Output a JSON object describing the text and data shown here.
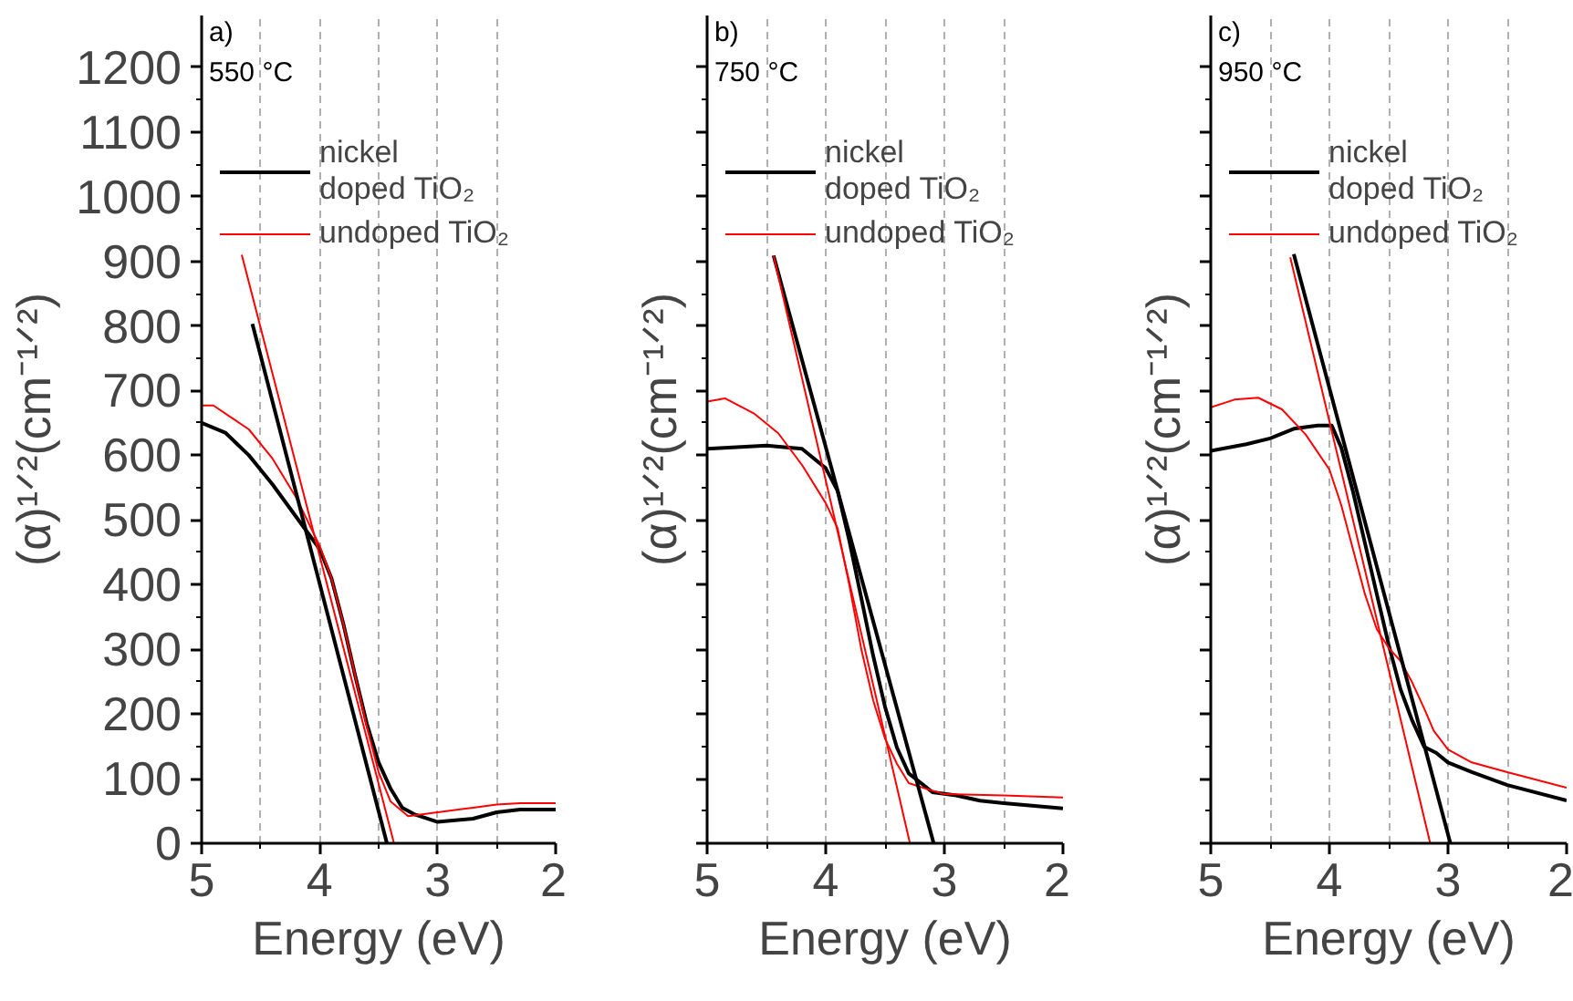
{
  "chart_data": [
    {
      "type": "line",
      "annotations": [
        "a)",
        "550 °C"
      ],
      "xlabel": "Energy (eV)",
      "ylabel": "(α)¹ᐟ²(cm⁻¹ᐟ²)",
      "xlim": [
        5,
        2
      ],
      "ylim": [
        0,
        1280
      ],
      "xticks": [
        5,
        4,
        3,
        2
      ],
      "yticks": [
        0,
        100,
        200,
        300,
        400,
        500,
        600,
        700,
        800,
        900,
        1000,
        1100,
        1200
      ],
      "grid": "x",
      "legend": "top left",
      "series": [
        {
          "name": "nickel\ndoped TiO₂",
          "color": "#000000",
          "x": [
            5,
            4.8,
            4.6,
            4.4,
            4.2,
            4.0,
            3.9,
            3.8,
            3.7,
            3.6,
            3.5,
            3.4,
            3.3,
            3.2,
            3.0,
            2.7,
            2.5,
            2.3,
            2.0
          ],
          "values": [
            650,
            635,
            600,
            555,
            505,
            455,
            410,
            340,
            260,
            185,
            125,
            85,
            55,
            45,
            33,
            38,
            48,
            52,
            52
          ]
        },
        {
          "name": "undoped TiO₂",
          "color": "#ff0000",
          "x": [
            5,
            4.9,
            4.6,
            4.4,
            4.2,
            4.0,
            3.9,
            3.8,
            3.7,
            3.6,
            3.5,
            3.4,
            3.25,
            3.0,
            2.7,
            2.5,
            2.3,
            2.0
          ],
          "values": [
            677,
            677,
            640,
            595,
            535,
            460,
            410,
            340,
            260,
            180,
            110,
            65,
            42,
            48,
            55,
            60,
            62,
            62
          ]
        },
        {
          "color": "#000000",
          "x": [
            4.57,
            3.43
          ],
          "values": [
            803,
            0
          ]
        },
        {
          "color": "#ff0000",
          "x": [
            4.66,
            3.37
          ],
          "values": [
            910,
            0
          ]
        }
      ]
    },
    {
      "type": "line",
      "annotations": [
        "b)",
        "750 °C"
      ],
      "xlabel": "Energy (eV)",
      "ylabel": "(α)¹ᐟ²(cm⁻¹ᐟ²)",
      "xlim": [
        5,
        2
      ],
      "ylim": [
        0,
        1280
      ],
      "xticks": [
        5,
        4,
        3,
        2
      ],
      "yticks": [
        0,
        100,
        200,
        300,
        400,
        500,
        600,
        700,
        800,
        900,
        1000,
        1100,
        1200
      ],
      "tick_labels": "x",
      "grid": "x",
      "legend": "top left",
      "series": [
        {
          "name": "nickel\ndoped TiO₂",
          "color": "#000000",
          "x": [
            5,
            4.5,
            4.2,
            4.0,
            3.9,
            3.8,
            3.7,
            3.6,
            3.5,
            3.4,
            3.3,
            3.1,
            2.9,
            2.7,
            2.5,
            2.0
          ],
          "values": [
            610,
            615,
            610,
            580,
            545,
            467,
            379,
            290,
            211,
            148,
            108,
            79,
            74,
            66,
            62,
            54
          ]
        },
        {
          "name": "undoped TiO₂",
          "color": "#ff0000",
          "x": [
            5,
            4.85,
            4.6,
            4.4,
            4.2,
            4.0,
            3.9,
            3.8,
            3.7,
            3.6,
            3.5,
            3.4,
            3.3,
            3.15,
            3.0,
            2.5,
            2.0
          ],
          "values": [
            683,
            688,
            664,
            634,
            585,
            526,
            487,
            398,
            300,
            221,
            162,
            123,
            93,
            84,
            76,
            74,
            71
          ]
        },
        {
          "color": "#000000",
          "x": [
            4.44,
            3.09
          ],
          "values": [
            909,
            0
          ]
        },
        {
          "color": "#ff0000",
          "x": [
            4.44,
            3.29
          ],
          "values": [
            909,
            0
          ]
        }
      ]
    },
    {
      "type": "line",
      "annotations": [
        "c)",
        "950 °C"
      ],
      "xlabel": "Energy (eV)",
      "ylabel": "(α)¹ᐟ²(cm⁻¹ᐟ²)",
      "xlim": [
        5,
        2
      ],
      "ylim": [
        0,
        1280
      ],
      "xticks": [
        5,
        4,
        3,
        2
      ],
      "yticks": [
        0,
        100,
        200,
        300,
        400,
        500,
        600,
        700,
        800,
        900,
        1000,
        1100,
        1200
      ],
      "tick_labels": "x",
      "grid": "x",
      "legend": "top left",
      "series": [
        {
          "name": "nickel\ndoped TiO₂",
          "color": "#000000",
          "x": [
            5,
            4.7,
            4.5,
            4.3,
            4.1,
            3.98,
            3.9,
            3.8,
            3.7,
            3.6,
            3.5,
            3.4,
            3.3,
            3.2,
            3.1,
            3.0,
            2.8,
            2.5,
            2.0
          ],
          "values": [
            607,
            617,
            626,
            641,
            646,
            646,
            612,
            543,
            464,
            385,
            307,
            238,
            189,
            149,
            140,
            125,
            110,
            90,
            66
          ]
        },
        {
          "name": "undoped TiO₂",
          "color": "#ff0000",
          "x": [
            5,
            4.8,
            4.6,
            4.4,
            4.2,
            4.0,
            3.9,
            3.8,
            3.7,
            3.6,
            3.5,
            3.4,
            3.3,
            3.2,
            3.12,
            3.0,
            2.8,
            2.5,
            2.0
          ],
          "values": [
            674,
            686,
            689,
            671,
            632,
            578,
            523,
            454,
            385,
            331,
            302,
            282,
            248,
            208,
            174,
            145,
            125,
            110,
            86
          ]
        },
        {
          "color": "#000000",
          "x": [
            4.3,
            2.98
          ],
          "values": [
            911,
            0
          ]
        },
        {
          "color": "#ff0000",
          "x": [
            4.33,
            3.15
          ],
          "values": [
            906,
            0
          ]
        }
      ]
    }
  ]
}
